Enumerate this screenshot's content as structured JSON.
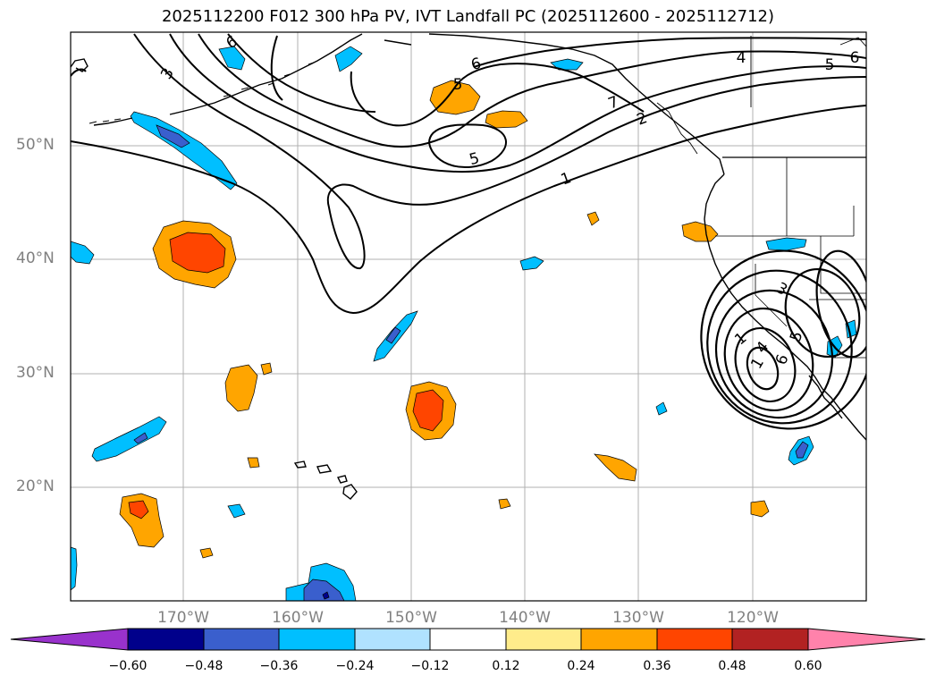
{
  "title": "2025112200 F012 300 hPa PV, IVT Landfall PC (2025112600 - 2025112712)",
  "lat_labels": [
    "50°N",
    "40°N",
    "30°N",
    "20°N"
  ],
  "lon_labels": [
    "170°W",
    "160°W",
    "150°W",
    "140°W",
    "130°W",
    "120°W"
  ],
  "colorbar": {
    "ticks": [
      "−0.60",
      "−0.48",
      "−0.36",
      "−0.24",
      "−0.12",
      "0.12",
      "0.24",
      "0.36",
      "0.48",
      "0.60"
    ],
    "colors": [
      "#9932cc",
      "#00008b",
      "#3a5fcd",
      "#00bfff",
      "#b0e2ff",
      "#ffffff",
      "#ffec8b",
      "#ffa500",
      "#ff4500",
      "#b22222",
      "#ff82ab"
    ]
  },
  "contour_labels": [
    "6",
    "3",
    "5",
    "6",
    "4",
    "5",
    "6",
    "7",
    "2",
    "5",
    "1",
    "3",
    "1",
    "5",
    "6",
    "4",
    "1"
  ],
  "fill_colors": {
    "pos_low": "#ffa500",
    "pos_high": "#ff4500",
    "neg_low": "#00bfff",
    "neg_high": "#3a5fcd",
    "neg_max": "#00008b"
  }
}
